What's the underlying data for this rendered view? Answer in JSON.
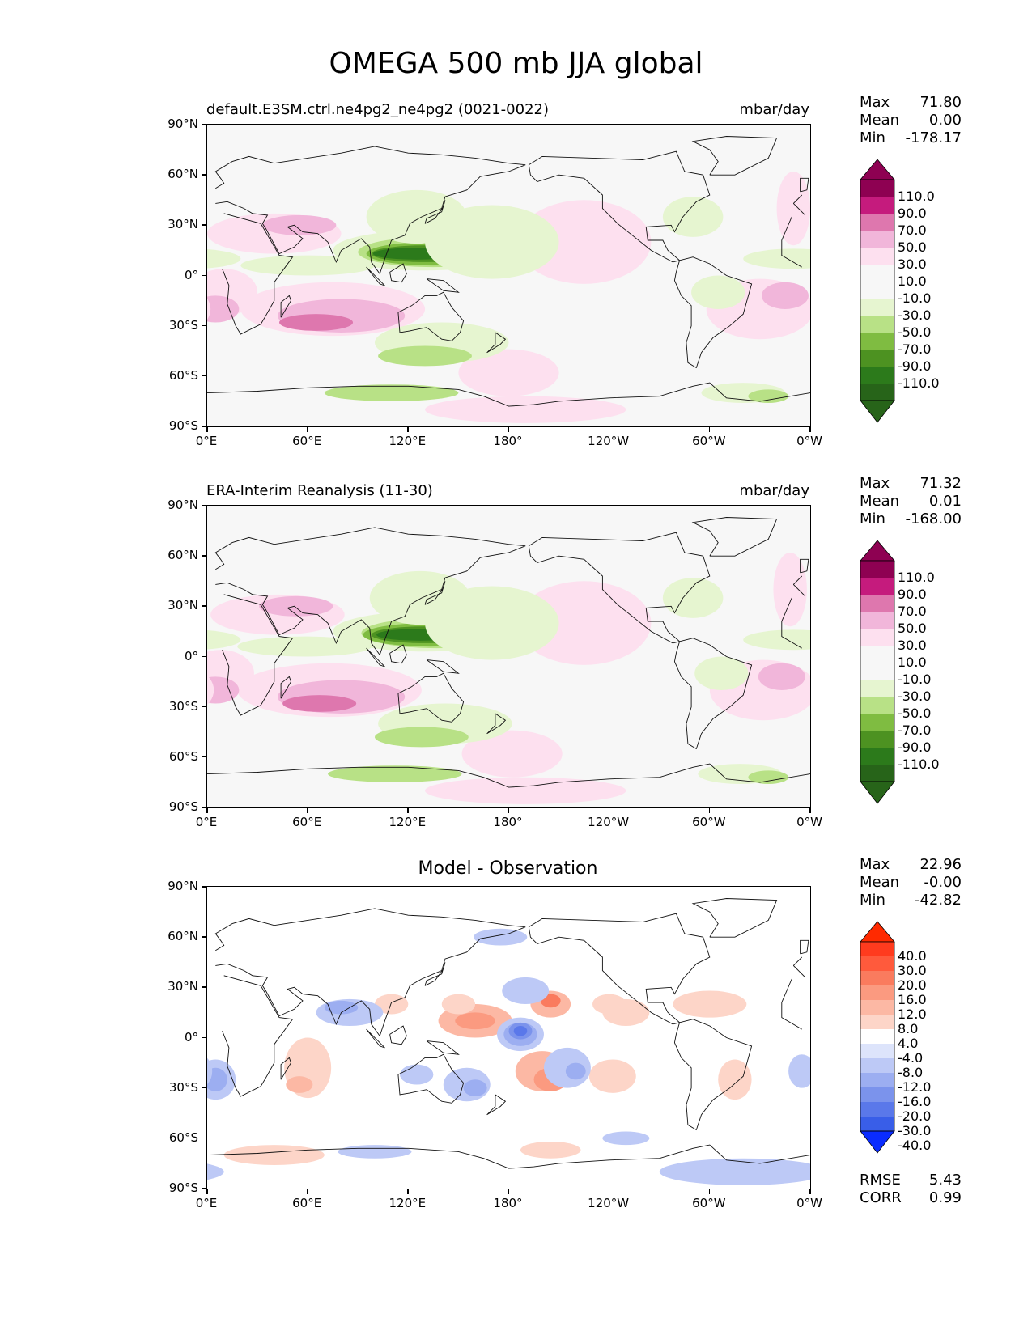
{
  "figure_title": "OMEGA 500 mb JJA global",
  "panels": [
    {
      "left_title": "default.E3SM.ctrl.ne4pg2_ne4pg2 (0021-0022)",
      "right_title": "mbar/day",
      "center_title": "",
      "stats": [
        [
          "Max",
          "71.80"
        ],
        [
          "Mean",
          "0.00"
        ],
        [
          "Min",
          "-178.17"
        ]
      ],
      "colorbar": "main"
    },
    {
      "left_title": "ERA-Interim Reanalysis (11-30)",
      "right_title": "mbar/day",
      "center_title": "",
      "stats": [
        [
          "Max",
          "71.32"
        ],
        [
          "Mean",
          "0.01"
        ],
        [
          "Min",
          "-168.00"
        ]
      ],
      "colorbar": "main"
    },
    {
      "left_title": "",
      "right_title": "",
      "center_title": "Model - Observation",
      "stats": [
        [
          "Max",
          "22.96"
        ],
        [
          "Mean",
          "-0.00"
        ],
        [
          "Min",
          "-42.82"
        ]
      ],
      "colorbar": "diff",
      "metrics": [
        [
          "RMSE",
          "5.43"
        ],
        [
          "CORR",
          "0.99"
        ]
      ]
    }
  ],
  "y_ticks": [
    "90°N",
    "60°N",
    "30°N",
    "0°",
    "30°S",
    "60°S",
    "90°S"
  ],
  "x_ticks": [
    "0°E",
    "60°E",
    "120°E",
    "180°",
    "120°W",
    "60°W",
    "0°W"
  ],
  "colorbars": {
    "main": {
      "labels": [
        "110.0",
        "90.0",
        "70.0",
        "50.0",
        "30.0",
        "10.0",
        "-10.0",
        "-30.0",
        "-50.0",
        "-70.0",
        "-90.0",
        "-110.0"
      ],
      "colors": [
        "#8e0152",
        "#c51b7d",
        "#de77ae",
        "#f1b6da",
        "#fde0ef",
        "#f7f7f7",
        "#f7f7f7",
        "#e6f5d0",
        "#b8e186",
        "#7fbc41",
        "#4d9221",
        "#2c7a1b",
        "#276419"
      ],
      "top_color": "#8e0152",
      "bottom_color": "#276419"
    },
    "diff": {
      "labels": [
        "40.0",
        "30.0",
        "20.0",
        "16.0",
        "12.0",
        "8.0",
        "4.0",
        "-4.0",
        "-8.0",
        "-12.0",
        "-16.0",
        "-20.0",
        "-30.0",
        "-40.0"
      ],
      "colors": [
        "#ff3b1e",
        "#ff5a3c",
        "#fa7b5e",
        "#fb9a80",
        "#fcb8a4",
        "#fdd5c8",
        "#ffffff",
        "#dde4fb",
        "#bdc9f6",
        "#9caef1",
        "#7b93ec",
        "#5a78ea",
        "#395ee8"
      ],
      "top_color": "#ff2a00",
      "bottom_color": "#0a2cff"
    }
  }
}
